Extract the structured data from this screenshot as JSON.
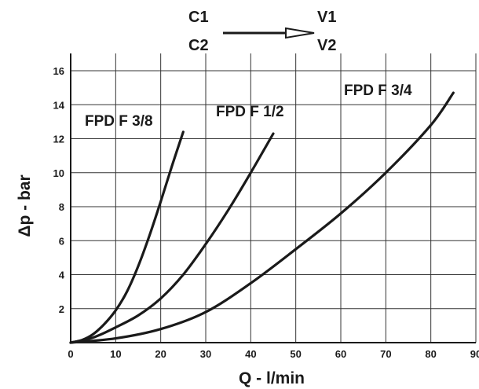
{
  "chart_data": {
    "type": "line",
    "title": "",
    "xlabel": "Q - l/min",
    "ylabel": "Δp - bar",
    "xlim": [
      0,
      90
    ],
    "ylim": [
      0,
      16
    ],
    "x_ticks": [
      0,
      10,
      20,
      30,
      40,
      50,
      60,
      70,
      80,
      90
    ],
    "y_ticks": [
      2,
      4,
      6,
      8,
      10,
      12,
      14,
      16
    ],
    "grid": true,
    "legend": "none",
    "flow": {
      "from": [
        "C1",
        "C2"
      ],
      "to": [
        "V1",
        "V2"
      ]
    },
    "series": [
      {
        "name": "FPD F 3/8",
        "x": [
          0,
          2.5,
          5,
          7.5,
          10,
          12.5,
          15,
          17.5,
          20,
          22.5,
          25
        ],
        "y": [
          0,
          0.15,
          0.5,
          1.1,
          1.9,
          3.0,
          4.5,
          6.3,
          8.3,
          10.4,
          12.4
        ]
      },
      {
        "name": "FPD F 1/2",
        "x": [
          0,
          5,
          10,
          15,
          20,
          25,
          30,
          35,
          40,
          45
        ],
        "y": [
          0,
          0.3,
          0.9,
          1.6,
          2.6,
          4.0,
          5.8,
          7.8,
          10.0,
          12.3
        ]
      },
      {
        "name": "FPD F 3/4",
        "x": [
          0,
          10,
          20,
          30,
          40,
          50,
          60,
          70,
          80,
          85
        ],
        "y": [
          0,
          0.25,
          0.8,
          1.8,
          3.5,
          5.5,
          7.6,
          10.0,
          12.8,
          14.7
        ]
      }
    ]
  }
}
